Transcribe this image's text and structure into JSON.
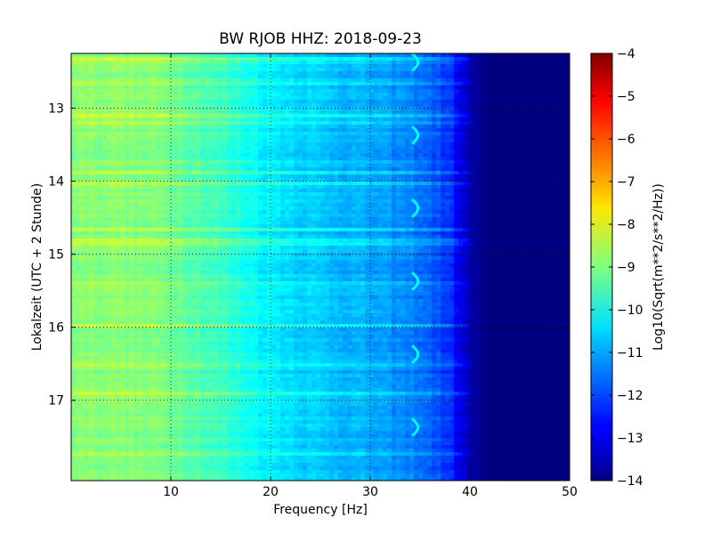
{
  "chart_data": {
    "type": "heatmap",
    "title": "BW RJOB HHZ: 2018-09-23",
    "xlabel": "Frequency [Hz]",
    "ylabel": "Lokalzeit (UTC + 2 Stunde)",
    "xlim": [
      0,
      50
    ],
    "ylim": [
      12.25,
      18.1
    ],
    "y_inverted": true,
    "x_ticks": [
      10,
      20,
      30,
      40,
      50
    ],
    "y_ticks": [
      13,
      14,
      15,
      16,
      17
    ],
    "grid": true,
    "colormap": "jet",
    "colorbar": {
      "label": "Log10(Sqrt(m**2/s**2/Hz))",
      "range": [
        -14,
        -4
      ],
      "ticks": [
        -4,
        -5,
        -6,
        -7,
        -8,
        -9,
        -10,
        -11,
        -12,
        -13,
        -14
      ]
    },
    "spectral_profile": {
      "frequency_hz": [
        0,
        5,
        10,
        15,
        20,
        25,
        30,
        35,
        38,
        40,
        42,
        50
      ],
      "log10_amplitude": [
        -8.9,
        -8.9,
        -9.1,
        -9.7,
        -10.4,
        -10.8,
        -11.1,
        -11.6,
        -12.3,
        -13.6,
        -14,
        -14
      ]
    },
    "narrowband_feature": {
      "frequency_hz": 34.5,
      "log10_amplitude": -10.3,
      "pattern": "hourly drifting line"
    },
    "colors": {
      "low": "#00007f",
      "mid": "#7fff7f",
      "high": "#7f0000"
    }
  }
}
